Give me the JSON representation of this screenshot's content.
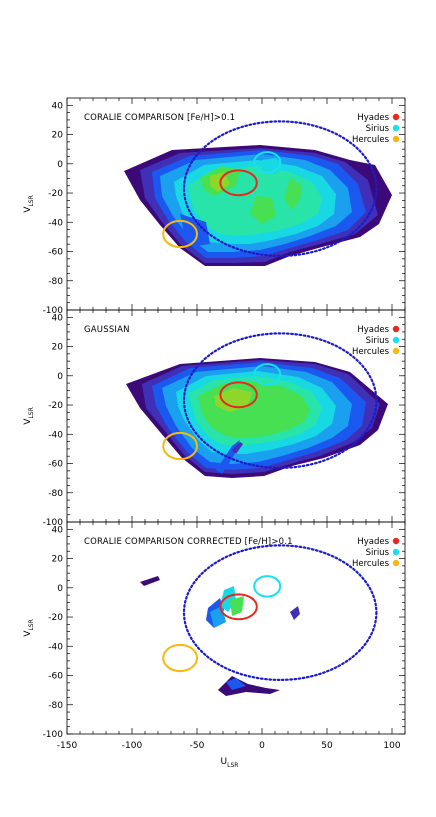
{
  "chart_data": {
    "type": "contour",
    "xlabel": "U",
    "xlabel_sub": "LSR",
    "ylabel": "V",
    "ylabel_sub": "LSR",
    "xlim": [
      -150,
      110
    ],
    "ylim": [
      -100,
      45
    ],
    "x_ticks": [
      -150,
      -100,
      -50,
      0,
      50,
      100
    ],
    "y_ticks": [
      40,
      20,
      0,
      -20,
      -40,
      -60,
      -80,
      -100
    ],
    "legend_position": "top-right",
    "legend": [
      {
        "name": "Hyades",
        "color": "#e8281e"
      },
      {
        "name": "Sirius",
        "color": "#18e0f0"
      },
      {
        "name": "Hercules",
        "color": "#f5b90f"
      }
    ],
    "ellipse_color": "#1c1cc8",
    "panels": [
      {
        "title": "CORALIE COMPARISON [Fe/H]>0.1",
        "map": "full"
      },
      {
        "title": "GAUSSIAN",
        "map": "gaussian"
      },
      {
        "title": "CORALIE COMPARISON CORRECTED [Fe/H]>0.1",
        "map": "corrected"
      }
    ],
    "reference_ellipse": {
      "cx": 14,
      "cy": -17,
      "rx": 74,
      "ry": 46
    },
    "hyades": {
      "cx": -18,
      "cy": -13,
      "rx": 14,
      "ry": 8.5
    },
    "sirius": {
      "cx": 4,
      "cy": 1,
      "rx": 10,
      "ry": 7
    },
    "hercules": {
      "cx": -63,
      "cy": -48,
      "rx": 13,
      "ry": 9
    }
  }
}
